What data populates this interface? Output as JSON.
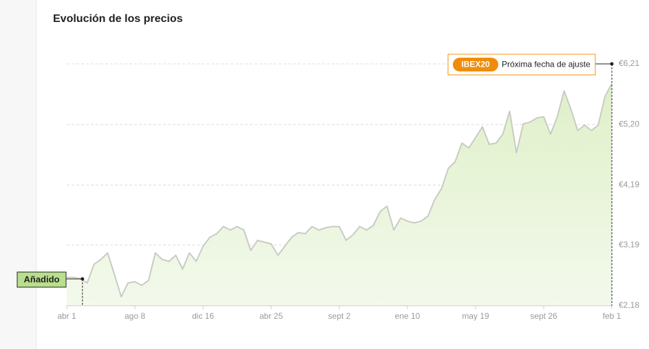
{
  "chart_data": {
    "type": "line",
    "title": "Evolución de los precios",
    "categories": [
      "abr 1",
      null,
      null,
      null,
      null,
      null,
      null,
      null,
      null,
      null,
      "ago 8",
      null,
      null,
      null,
      null,
      null,
      null,
      null,
      null,
      null,
      "dic 16",
      null,
      null,
      null,
      null,
      null,
      null,
      null,
      null,
      null,
      "abr 25",
      null,
      null,
      null,
      null,
      null,
      null,
      null,
      null,
      null,
      "sept 2",
      null,
      null,
      null,
      null,
      null,
      null,
      null,
      null,
      null,
      "ene 10",
      null,
      null,
      null,
      null,
      null,
      null,
      null,
      null,
      null,
      "may 19",
      null,
      null,
      null,
      null,
      null,
      null,
      null,
      null,
      null,
      "sept 26",
      null,
      null,
      null,
      null,
      null,
      null,
      null,
      null,
      null,
      "feb 1"
    ],
    "values": [
      2.65,
      2.65,
      2.63,
      2.56,
      2.87,
      2.95,
      3.06,
      2.7,
      2.33,
      2.56,
      2.58,
      2.52,
      2.6,
      3.06,
      2.95,
      2.92,
      3.02,
      2.79,
      3.06,
      2.92,
      3.17,
      3.32,
      3.38,
      3.5,
      3.44,
      3.5,
      3.44,
      3.1,
      3.27,
      3.24,
      3.21,
      3.02,
      3.17,
      3.32,
      3.4,
      3.38,
      3.5,
      3.44,
      3.48,
      3.5,
      3.5,
      3.27,
      3.36,
      3.5,
      3.44,
      3.52,
      3.75,
      3.84,
      3.44,
      3.64,
      3.59,
      3.56,
      3.59,
      3.67,
      3.95,
      4.13,
      4.47,
      4.58,
      4.89,
      4.81,
      4.98,
      5.16,
      4.87,
      4.89,
      5.04,
      5.42,
      4.73,
      5.21,
      5.24,
      5.31,
      5.33,
      5.04,
      5.33,
      5.76,
      5.45,
      5.1,
      5.19,
      5.1,
      5.19,
      5.67,
      5.88
    ],
    "color": "#c9cbc2",
    "fill_color": "#e6f3d4",
    "ylim": [
      2.18,
      6.21
    ],
    "yticks": [
      {
        "value": 2.18,
        "label": "€2,18"
      },
      {
        "value": 3.19,
        "label": "€3,19"
      },
      {
        "value": 4.19,
        "label": "€4,19"
      },
      {
        "value": 5.2,
        "label": "€5,20"
      },
      {
        "value": 6.21,
        "label": "€6,21"
      }
    ],
    "grid": true,
    "annotations": {
      "added": "Añadido",
      "badge": "IBEX20",
      "next_adjust": "Próxima fecha de ajuste"
    }
  }
}
